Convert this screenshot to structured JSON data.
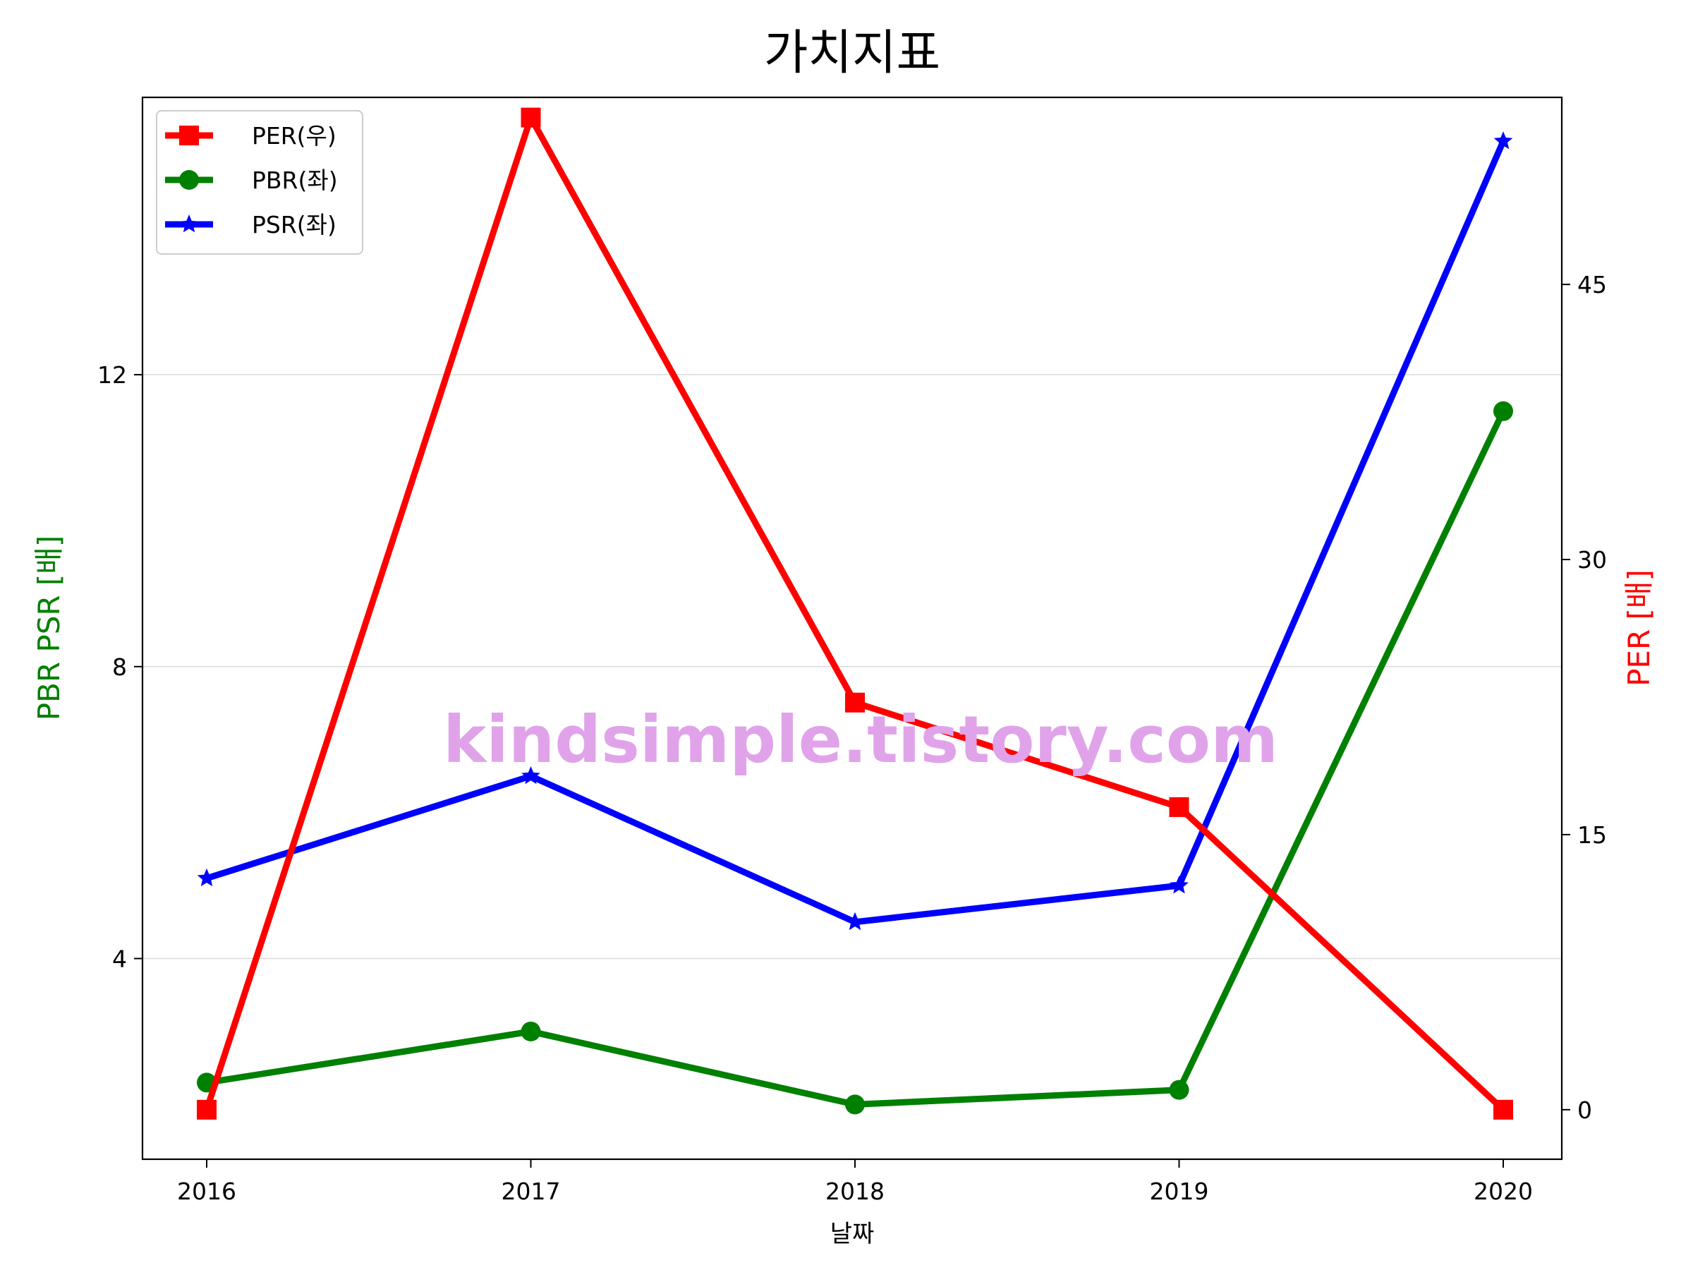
{
  "chart_data": {
    "type": "line",
    "title": "가치지표",
    "xlabel": "날짜",
    "ylabel_left": "PBR PSR [배]",
    "ylabel_right": "PER [배]",
    "categories": [
      "2016",
      "2017",
      "2018",
      "2019",
      "2020"
    ],
    "y_left": {
      "ylim": [
        1.25,
        15.8
      ],
      "ticks": [
        4,
        8,
        12
      ],
      "tick_labels": [
        "4",
        "8",
        "12"
      ]
    },
    "y_right": {
      "ylim": [
        -2.7,
        55.2
      ],
      "ticks": [
        0,
        15,
        30,
        45
      ],
      "tick_labels": [
        "0",
        "15",
        "30",
        "45"
      ]
    },
    "grid": "horizontal-left",
    "legend_position": "top-left",
    "series": [
      {
        "name": "PER(우)",
        "axis": "right",
        "color": "#ff0000",
        "marker": "square",
        "values": [
          0,
          54.1,
          22.2,
          16.5,
          0
        ]
      },
      {
        "name": "PBR(좌)",
        "axis": "left",
        "color": "#008000",
        "marker": "circle",
        "values": [
          2.3,
          3.0,
          2.0,
          2.2,
          11.5
        ]
      },
      {
        "name": "PSR(좌)",
        "axis": "left",
        "color": "#0000ff",
        "marker": "star",
        "values": [
          5.1,
          6.5,
          4.5,
          5.0,
          15.2
        ]
      }
    ],
    "ylabel_left_color": "#008000",
    "ylabel_right_color": "#ff0000"
  },
  "watermark": "kindsimple.tistory.com",
  "watermark_color": "#e0a3ea"
}
